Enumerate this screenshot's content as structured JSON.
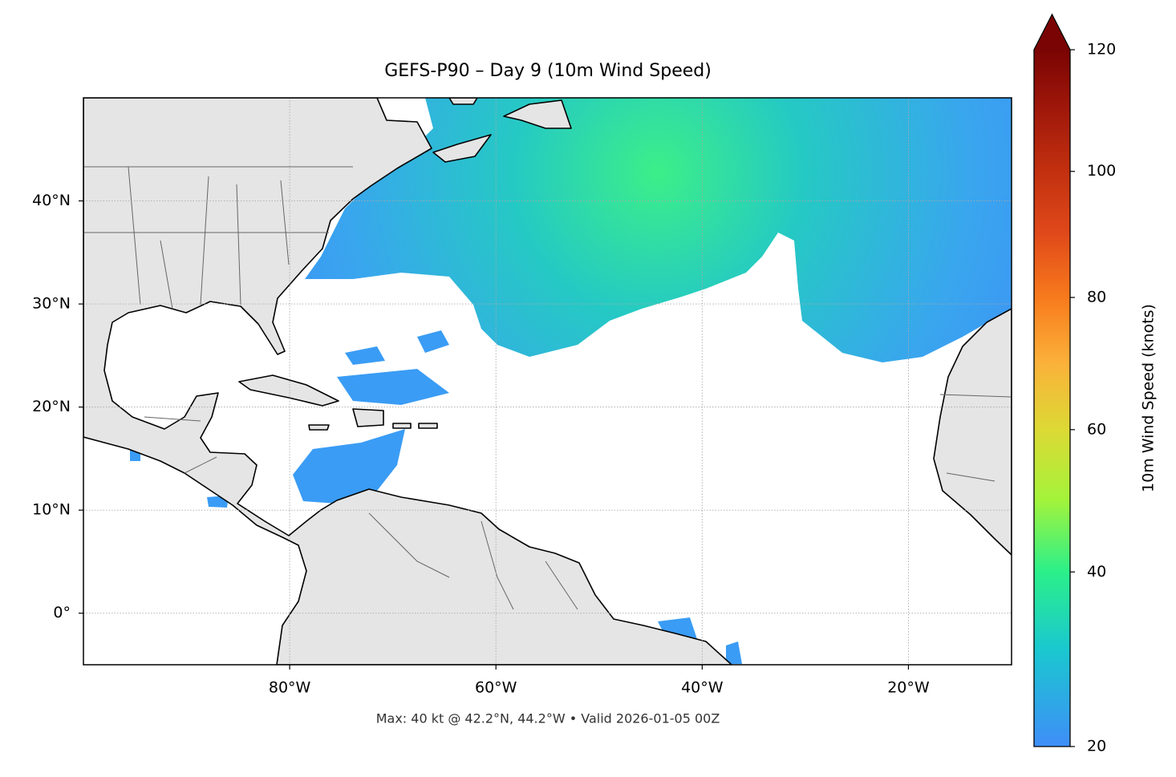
{
  "chart_data": {
    "type": "map",
    "title": "GEFS-P90 – Day 9 (10m Wind Speed)",
    "xlim": [
      -100,
      -10
    ],
    "ylim": [
      -5,
      50
    ],
    "xticks": [
      {
        "value": -80,
        "label": "80°W"
      },
      {
        "value": -60,
        "label": "60°W"
      },
      {
        "value": -40,
        "label": "40°W"
      },
      {
        "value": -20,
        "label": "20°W"
      }
    ],
    "yticks": [
      {
        "value": 0,
        "label": "0°"
      },
      {
        "value": 10,
        "label": "10°N"
      },
      {
        "value": 20,
        "label": "20°N"
      },
      {
        "value": 30,
        "label": "30°N"
      },
      {
        "value": 40,
        "label": "40°N"
      }
    ],
    "grid": true,
    "colorbar": {
      "label": "10m Wind Speed (knots)",
      "lim": [
        20,
        120
      ],
      "ticks": [
        20,
        40,
        60,
        80,
        100,
        120
      ],
      "scale": "power",
      "gamma": 0.86,
      "extend": "max",
      "colors": [
        "#3f8ef8",
        "#1ac7d0",
        "#2bf08a",
        "#a4f33a",
        "#dcd935",
        "#fbb13a",
        "#f77a1c",
        "#e0491a",
        "#c2300f",
        "#a0180a",
        "#7a0403"
      ]
    },
    "annotation": "Max: 40 kt @ 42.2°N, 44.2°W • Valid 2026-01-05 00Z"
  }
}
